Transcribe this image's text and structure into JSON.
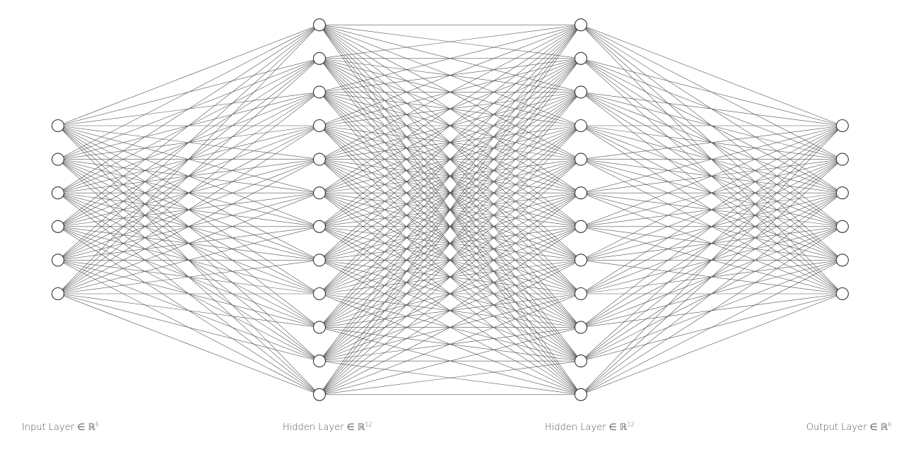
{
  "diagram": {
    "type": "fully-connected-neural-network",
    "layers": [
      {
        "name": "Input Layer",
        "symbol": "∈ ℝ",
        "dimension": "6",
        "nodes": 6
      },
      {
        "name": "Hidden Layer",
        "symbol": "∈ ℝ",
        "dimension": "12",
        "nodes": 12
      },
      {
        "name": "Hidden Layer",
        "symbol": "∈ ℝ",
        "dimension": "12",
        "nodes": 12
      },
      {
        "name": "Output Layer",
        "symbol": "∈ ℝ",
        "dimension": "6",
        "nodes": 6
      }
    ],
    "colors": {
      "edge": "#505050",
      "node_stroke": "#333333",
      "node_fill": "#ffffff",
      "label_text": "#555555"
    }
  }
}
